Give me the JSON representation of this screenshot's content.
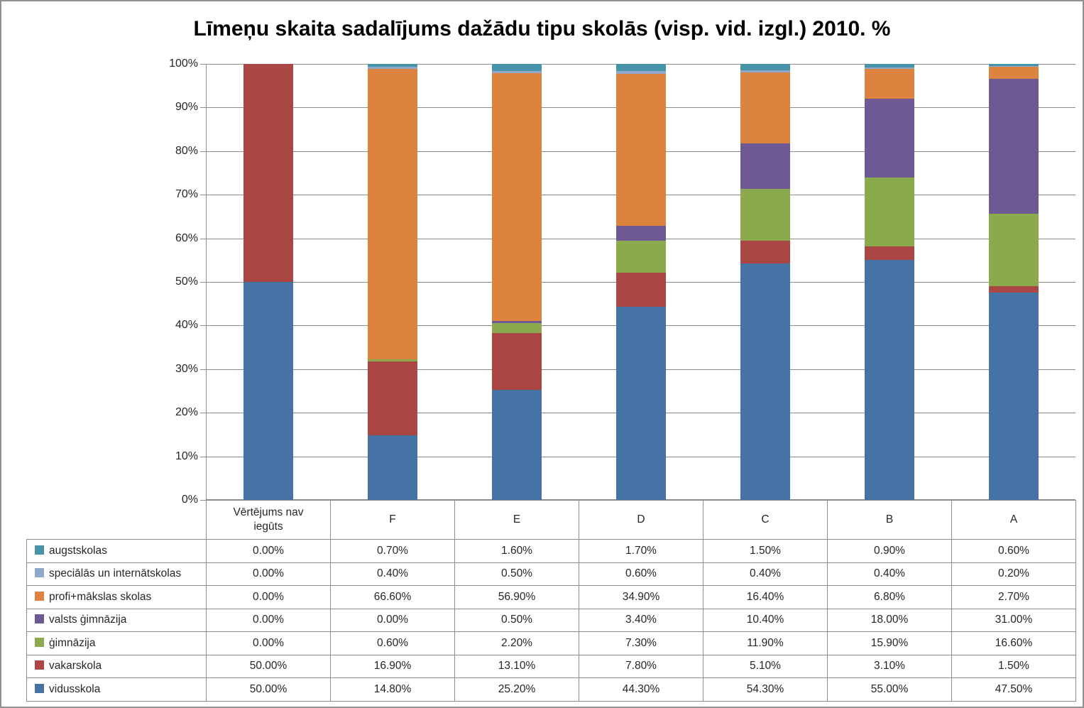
{
  "title": "Līmeņu skaita sadalījums dažādu tipu skolās (visp. vid. izgl.) 2010. %",
  "colors": {
    "grid": "#8c8c8c",
    "table_border": "#8c8c8c",
    "text": "#262626",
    "title_text": "#000000",
    "frame_border": "#919191"
  },
  "y_axis": {
    "tick_labels": [
      "0%",
      "10%",
      "20%",
      "30%",
      "40%",
      "50%",
      "60%",
      "70%",
      "80%",
      "90%",
      "100%"
    ]
  },
  "chart_data": {
    "type": "bar",
    "stacked": true,
    "title": "Līmeņu skaita sadalījums dažādu tipu skolās (visp. vid. izgl.) 2010. %",
    "xlabel": "",
    "ylabel": "",
    "ylim": [
      0,
      100
    ],
    "ytick_step": 10,
    "grid": true,
    "legend_position": "data-table-row-labels",
    "categories": [
      "Vērtējums nav iegūts",
      "F",
      "E",
      "D",
      "C",
      "B",
      "A"
    ],
    "series": [
      {
        "name": "vidusskola",
        "color": "#4673A6",
        "values": [
          50.0,
          14.8,
          25.2,
          44.3,
          54.3,
          55.0,
          47.5
        ]
      },
      {
        "name": "vakarskola",
        "color": "#AA4744",
        "values": [
          50.0,
          16.9,
          13.1,
          7.8,
          5.1,
          3.1,
          1.5
        ]
      },
      {
        "name": "ģimnāzija",
        "color": "#8BAA4D",
        "values": [
          0.0,
          0.6,
          2.2,
          7.3,
          11.9,
          15.9,
          16.6
        ]
      },
      {
        "name": "valsts ģimnāzija",
        "color": "#6E5994",
        "values": [
          0.0,
          0.0,
          0.5,
          3.4,
          10.4,
          18.0,
          31.0
        ]
      },
      {
        "name": "profi+mākslas skolas",
        "color": "#DD8340",
        "values": [
          0.0,
          66.6,
          56.9,
          34.9,
          16.4,
          6.8,
          2.7
        ]
      },
      {
        "name": "speciālās un internātskolas",
        "color": "#90A8CC",
        "values": [
          0.0,
          0.4,
          0.5,
          0.6,
          0.4,
          0.4,
          0.2
        ]
      },
      {
        "name": "augstskolas",
        "color": "#4894A8",
        "values": [
          0.0,
          0.7,
          1.6,
          1.7,
          1.5,
          0.9,
          0.6
        ]
      }
    ]
  },
  "table": {
    "header": [
      "Vērtējums nav iegūts",
      "F",
      "E",
      "D",
      "C",
      "B",
      "A"
    ],
    "rows": [
      {
        "label": "augstskolas",
        "color": "#4894A8",
        "values": [
          "0.00%",
          "0.70%",
          "1.60%",
          "1.70%",
          "1.50%",
          "0.90%",
          "0.60%"
        ]
      },
      {
        "label": "speciālās un internātskolas",
        "color": "#90A8CC",
        "values": [
          "0.00%",
          "0.40%",
          "0.50%",
          "0.60%",
          "0.40%",
          "0.40%",
          "0.20%"
        ]
      },
      {
        "label": "profi+mākslas skolas",
        "color": "#DD8340",
        "values": [
          "0.00%",
          "66.60%",
          "56.90%",
          "34.90%",
          "16.40%",
          "6.80%",
          "2.70%"
        ]
      },
      {
        "label": "valsts ģimnāzija",
        "color": "#6E5994",
        "values": [
          "0.00%",
          "0.00%",
          "0.50%",
          "3.40%",
          "10.40%",
          "18.00%",
          "31.00%"
        ]
      },
      {
        "label": "ģimnāzija",
        "color": "#8BAA4D",
        "values": [
          "0.00%",
          "0.60%",
          "2.20%",
          "7.30%",
          "11.90%",
          "15.90%",
          "16.60%"
        ]
      },
      {
        "label": "vakarskola",
        "color": "#AA4744",
        "values": [
          "50.00%",
          "16.90%",
          "13.10%",
          "7.80%",
          "5.10%",
          "3.10%",
          "1.50%"
        ]
      },
      {
        "label": "vidusskola",
        "color": "#4673A6",
        "values": [
          "50.00%",
          "14.80%",
          "25.20%",
          "44.30%",
          "54.30%",
          "55.00%",
          "47.50%"
        ]
      }
    ]
  }
}
